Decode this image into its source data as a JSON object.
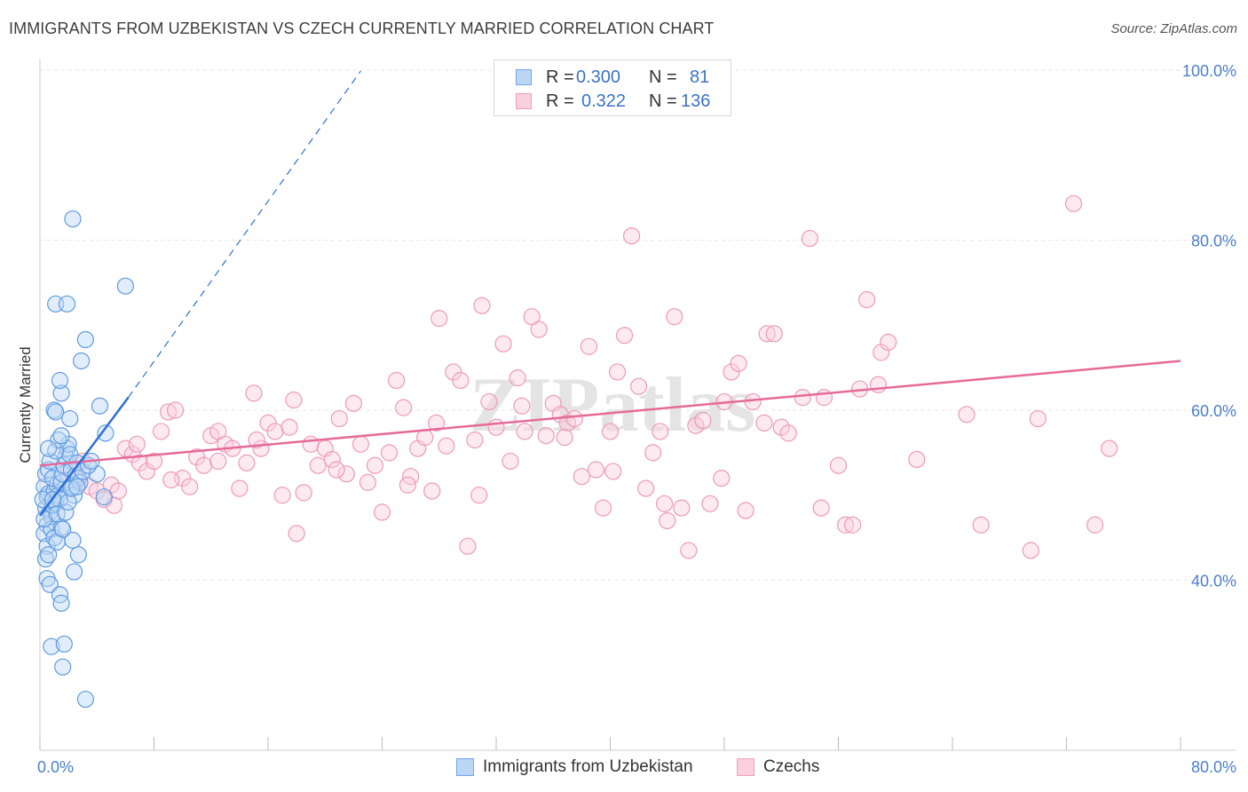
{
  "title": "IMMIGRANTS FROM UZBEKISTAN VS CZECH CURRENTLY MARRIED CORRELATION CHART",
  "source": "Source: ZipAtlas.com",
  "colors": {
    "blue": "#6fa8e8",
    "blue_line": "#2e6fd4",
    "pink": "#f0a0bc",
    "pink_line": "#e56a98",
    "axis_text": "#4a7fd0"
  },
  "legend": {
    "row1": {
      "r_label": "R =",
      "r_value": "0.300",
      "n_label": "N =",
      "n_value": "81"
    },
    "row2": {
      "r_label": "R =",
      "r_value": "0.322",
      "n_label": "N =",
      "n_value": "136"
    }
  },
  "bottom_legend": {
    "series1": "Immigrants from Uzbekistan",
    "series2": "Czechs"
  },
  "watermark": "ZIPatlas",
  "chart_data": {
    "type": "scatter",
    "xlabel": "",
    "ylabel": "Currently Married",
    "xlim": [
      0,
      80
    ],
    "ylim": [
      20,
      100
    ],
    "x_tick_labels": [
      "0.0%",
      "80.0%"
    ],
    "y_ticks": [
      40,
      60,
      80,
      100
    ],
    "y_tick_labels": [
      "40.0%",
      "60.0%",
      "80.0%",
      "100.0%"
    ],
    "grid": true,
    "legend_position": "top-center",
    "series": [
      {
        "name": "Immigrants from Uzbekistan",
        "color": "#6fa8e8",
        "trend": {
          "x0": 0.0,
          "y0": 47.6,
          "x1": 6.2,
          "y1": 61.5,
          "dashed_to_x": 22.5,
          "dashed_to_y": 99.9
        },
        "points": [
          [
            0.3,
            51.0
          ],
          [
            0.4,
            48.5
          ],
          [
            0.5,
            49.8
          ],
          [
            0.6,
            50.2
          ],
          [
            0.7,
            48.0
          ],
          [
            0.5,
            46.5
          ],
          [
            0.8,
            47.5
          ],
          [
            0.9,
            48.8
          ],
          [
            1.0,
            50.5
          ],
          [
            1.1,
            49.0
          ],
          [
            1.2,
            51.2
          ],
          [
            0.4,
            52.5
          ],
          [
            0.6,
            53.0
          ],
          [
            0.7,
            54.0
          ],
          [
            0.9,
            52.0
          ],
          [
            1.3,
            50.0
          ],
          [
            1.4,
            49.5
          ],
          [
            1.5,
            51.5
          ],
          [
            0.3,
            45.5
          ],
          [
            0.5,
            44.0
          ],
          [
            0.8,
            46.0
          ],
          [
            1.0,
            45.0
          ],
          [
            1.2,
            44.5
          ],
          [
            1.5,
            46.2
          ],
          [
            1.6,
            52.5
          ],
          [
            1.7,
            53.5
          ],
          [
            1.8,
            54.5
          ],
          [
            1.9,
            55.5
          ],
          [
            2.0,
            56.0
          ],
          [
            2.1,
            54.8
          ],
          [
            2.2,
            53.0
          ],
          [
            2.3,
            51.0
          ],
          [
            2.4,
            50.0
          ],
          [
            2.5,
            52.3
          ],
          [
            2.6,
            53.8
          ],
          [
            2.7,
            52.0
          ],
          [
            2.8,
            51.5
          ],
          [
            1.1,
            55.2
          ],
          [
            1.3,
            56.5
          ],
          [
            1.5,
            57.0
          ],
          [
            1.0,
            60.0
          ],
          [
            1.1,
            59.8
          ],
          [
            1.5,
            62.0
          ],
          [
            1.4,
            63.5
          ],
          [
            2.1,
            59.0
          ],
          [
            2.9,
            65.8
          ],
          [
            3.2,
            68.3
          ],
          [
            1.1,
            72.5
          ],
          [
            1.9,
            72.5
          ],
          [
            2.3,
            82.5
          ],
          [
            6.0,
            74.6
          ],
          [
            4.2,
            60.5
          ],
          [
            4.6,
            57.3
          ],
          [
            4.0,
            52.5
          ],
          [
            4.5,
            49.8
          ],
          [
            0.4,
            42.5
          ],
          [
            0.6,
            43.0
          ],
          [
            0.5,
            40.2
          ],
          [
            0.7,
            39.5
          ],
          [
            1.4,
            38.3
          ],
          [
            1.5,
            37.3
          ],
          [
            2.4,
            41.0
          ],
          [
            2.7,
            43.0
          ],
          [
            2.3,
            44.7
          ],
          [
            0.8,
            32.2
          ],
          [
            1.7,
            32.5
          ],
          [
            1.6,
            29.8
          ],
          [
            3.2,
            26.0
          ],
          [
            0.2,
            49.5
          ],
          [
            0.3,
            47.2
          ],
          [
            0.9,
            49.5
          ],
          [
            1.2,
            47.8
          ],
          [
            1.8,
            48.0
          ],
          [
            2.0,
            49.2
          ],
          [
            2.2,
            50.8
          ],
          [
            2.6,
            51.0
          ],
          [
            3.0,
            52.8
          ],
          [
            3.4,
            53.5
          ],
          [
            3.6,
            54.0
          ],
          [
            0.6,
            55.5
          ],
          [
            1.6,
            46.0
          ]
        ]
      },
      {
        "name": "Czechs",
        "color": "#f0a0bc",
        "trend": {
          "x0": 0.0,
          "y0": 53.5,
          "x1": 80.0,
          "y1": 65.8
        },
        "points": [
          [
            2.0,
            53.0
          ],
          [
            2.5,
            52.0
          ],
          [
            3.0,
            54.0
          ],
          [
            3.5,
            51.0
          ],
          [
            4.0,
            50.5
          ],
          [
            4.5,
            49.5
          ],
          [
            5.0,
            51.2
          ],
          [
            5.5,
            50.5
          ],
          [
            6.0,
            55.5
          ],
          [
            6.5,
            54.8
          ],
          [
            7.0,
            53.8
          ],
          [
            7.5,
            52.8
          ],
          [
            8.0,
            54.0
          ],
          [
            8.5,
            57.5
          ],
          [
            9.0,
            59.8
          ],
          [
            9.5,
            60.0
          ],
          [
            10.0,
            52.0
          ],
          [
            10.5,
            51.0
          ],
          [
            11.0,
            54.5
          ],
          [
            11.5,
            53.5
          ],
          [
            12.0,
            57.0
          ],
          [
            12.5,
            57.5
          ],
          [
            13.0,
            56.0
          ],
          [
            13.5,
            55.5
          ],
          [
            14.0,
            50.8
          ],
          [
            14.5,
            53.8
          ],
          [
            15.0,
            62.0
          ],
          [
            15.5,
            55.5
          ],
          [
            16.0,
            58.5
          ],
          [
            16.5,
            57.5
          ],
          [
            17.0,
            50.0
          ],
          [
            17.5,
            58.0
          ],
          [
            18.0,
            45.5
          ],
          [
            18.5,
            50.3
          ],
          [
            19.0,
            56.0
          ],
          [
            19.5,
            53.5
          ],
          [
            20.0,
            55.5
          ],
          [
            20.5,
            54.2
          ],
          [
            21.0,
            59.0
          ],
          [
            21.5,
            52.5
          ],
          [
            22.0,
            60.8
          ],
          [
            22.5,
            56.0
          ],
          [
            23.0,
            51.5
          ],
          [
            23.5,
            53.5
          ],
          [
            24.0,
            48.0
          ],
          [
            24.5,
            55.0
          ],
          [
            25.0,
            63.5
          ],
          [
            25.5,
            60.3
          ],
          [
            26.0,
            52.2
          ],
          [
            26.5,
            55.5
          ],
          [
            27.0,
            56.8
          ],
          [
            27.5,
            50.5
          ],
          [
            28.0,
            70.8
          ],
          [
            28.5,
            55.8
          ],
          [
            29.0,
            64.5
          ],
          [
            29.5,
            63.5
          ],
          [
            30.0,
            44.0
          ],
          [
            30.5,
            56.5
          ],
          [
            31.0,
            72.3
          ],
          [
            31.5,
            61.0
          ],
          [
            32.0,
            58.0
          ],
          [
            32.5,
            67.8
          ],
          [
            33.0,
            54.0
          ],
          [
            33.5,
            63.8
          ],
          [
            34.0,
            57.5
          ],
          [
            34.5,
            71.0
          ],
          [
            35.0,
            69.5
          ],
          [
            35.5,
            57.0
          ],
          [
            36.0,
            60.8
          ],
          [
            36.5,
            59.5
          ],
          [
            37.0,
            58.5
          ],
          [
            37.5,
            59.0
          ],
          [
            38.0,
            52.2
          ],
          [
            38.5,
            67.5
          ],
          [
            39.0,
            53.0
          ],
          [
            39.5,
            48.5
          ],
          [
            40.0,
            57.5
          ],
          [
            40.5,
            64.5
          ],
          [
            41.0,
            68.8
          ],
          [
            41.5,
            80.5
          ],
          [
            42.0,
            62.8
          ],
          [
            42.5,
            50.8
          ],
          [
            43.0,
            55.0
          ],
          [
            43.5,
            57.5
          ],
          [
            44.0,
            47.0
          ],
          [
            44.5,
            71.0
          ],
          [
            45.0,
            48.5
          ],
          [
            45.5,
            43.5
          ],
          [
            46.0,
            58.2
          ],
          [
            46.5,
            58.8
          ],
          [
            47.0,
            49.0
          ],
          [
            48.0,
            61.0
          ],
          [
            48.5,
            64.5
          ],
          [
            49.0,
            65.5
          ],
          [
            49.5,
            48.2
          ],
          [
            50.0,
            61.0
          ],
          [
            51.0,
            69.0
          ],
          [
            51.5,
            69.0
          ],
          [
            52.0,
            58.0
          ],
          [
            52.5,
            57.3
          ],
          [
            53.5,
            61.5
          ],
          [
            54.0,
            80.2
          ],
          [
            55.0,
            61.5
          ],
          [
            56.0,
            53.5
          ],
          [
            56.5,
            46.5
          ],
          [
            57.0,
            46.5
          ],
          [
            57.5,
            62.5
          ],
          [
            58.0,
            73.0
          ],
          [
            58.8,
            63.0
          ],
          [
            59.0,
            66.8
          ],
          [
            59.5,
            68.0
          ],
          [
            61.5,
            54.2
          ],
          [
            65.0,
            59.5
          ],
          [
            66.0,
            46.5
          ],
          [
            69.5,
            43.5
          ],
          [
            70.0,
            59.0
          ],
          [
            72.5,
            84.3
          ],
          [
            74.0,
            46.5
          ],
          [
            75.0,
            55.5
          ],
          [
            5.2,
            48.8
          ],
          [
            6.8,
            56.0
          ],
          [
            9.2,
            51.8
          ],
          [
            12.5,
            54.0
          ],
          [
            15.2,
            56.5
          ],
          [
            17.8,
            61.2
          ],
          [
            20.8,
            53.0
          ],
          [
            25.8,
            51.2
          ],
          [
            27.8,
            58.5
          ],
          [
            30.8,
            50.0
          ],
          [
            33.8,
            60.5
          ],
          [
            36.8,
            56.8
          ],
          [
            40.2,
            52.8
          ],
          [
            43.8,
            49.0
          ],
          [
            47.8,
            52.0
          ],
          [
            50.8,
            58.5
          ],
          [
            54.8,
            48.5
          ]
        ]
      }
    ]
  }
}
